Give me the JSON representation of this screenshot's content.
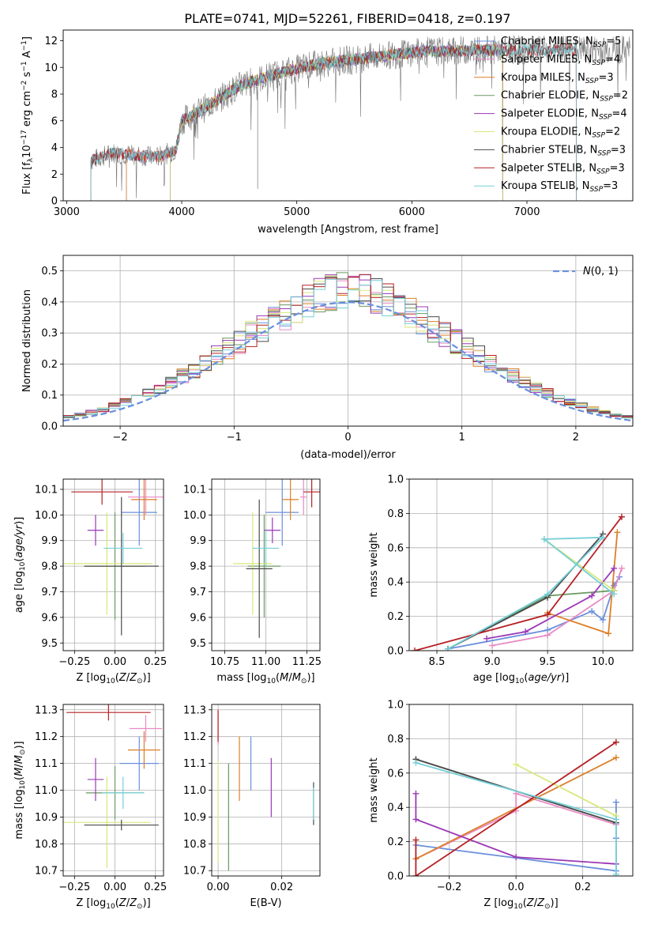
{
  "figure": {
    "title": "PLATE=0741, MJD=52261, FIBERID=0418, z=0.197"
  },
  "chart_data": [
    {
      "id": "spectrum",
      "type": "line",
      "title": "PLATE=0741, MJD=52261, FIBERID=0418, z=0.197",
      "xlabel": "wavelength [Angstrom, rest frame]",
      "ylabel": "Flux [f_λ10^-17 erg cm^-2 s^-1 A^-1]",
      "xlim": [
        2970,
        7920
      ],
      "ylim": [
        0,
        12.8
      ],
      "xticks": [
        3000,
        4000,
        5000,
        6000,
        7000
      ],
      "yticks": [
        0,
        2,
        4,
        6,
        8,
        10,
        12
      ],
      "grid": false,
      "legend_position": "right",
      "continuum_x": [
        3210,
        3400,
        3600,
        3800,
        3950,
        4000,
        4150,
        4300,
        4500,
        4700,
        4900,
        5100,
        5300,
        5500,
        5700,
        5900,
        6100,
        6300,
        6500,
        6700,
        6900,
        7100,
        7300,
        7500,
        7800
      ],
      "continuum_y": [
        3.0,
        3.6,
        3.4,
        3.3,
        3.8,
        6.0,
        6.7,
        7.5,
        8.6,
        9.2,
        9.7,
        10.1,
        10.4,
        10.6,
        10.8,
        11.0,
        11.2,
        11.2,
        11.3,
        11.3,
        11.3,
        11.3,
        11.3,
        11.3,
        11.3
      ],
      "data_start": 3210,
      "model_starts": [
        3520,
        3520,
        3520,
        3900,
        3900,
        3900,
        3210,
        3210,
        3210
      ],
      "model_ends": [
        6790,
        6790,
        6790,
        6790,
        6790,
        6790,
        7430,
        7430,
        7430
      ],
      "series": [
        {
          "name": "Chabrier MILES, N",
          "sub": "SSP",
          "suffix": "=5",
          "color": "#6a8fdc"
        },
        {
          "name": "Salpeter MILES, N",
          "sub": "SSP",
          "suffix": "=4",
          "color": "#e98ac4"
        },
        {
          "name": "Kroupa MILES, N",
          "sub": "SSP",
          "suffix": "=3",
          "color": "#dc7f27"
        },
        {
          "name": "Chabrier ELODIE, N",
          "sub": "SSP",
          "suffix": "=2",
          "color": "#6a9a62"
        },
        {
          "name": "Salpeter ELODIE, N",
          "sub": "SSP",
          "suffix": "=4",
          "color": "#9b39b6"
        },
        {
          "name": "Kroupa ELODIE, N",
          "sub": "SSP",
          "suffix": "=2",
          "color": "#d7e87a"
        },
        {
          "name": "Chabrier STELIB, N",
          "sub": "SSP",
          "suffix": "=3",
          "color": "#4b4b4b"
        },
        {
          "name": "Salpeter STELIB, N",
          "sub": "SSP",
          "suffix": "=3",
          "color": "#b52025"
        },
        {
          "name": "Kroupa STELIB, N",
          "sub": "SSP",
          "suffix": "=3",
          "color": "#76cfd8"
        }
      ]
    },
    {
      "id": "residuals",
      "type": "line",
      "xlabel": "(data-model)/error",
      "ylabel": "Normed distribution",
      "xlim": [
        -2.5,
        2.5
      ],
      "ylim": [
        0,
        0.55
      ],
      "xticks": [
        -2,
        -1,
        0,
        1,
        2
      ],
      "yticks": [
        0.0,
        0.1,
        0.2,
        0.3,
        0.4,
        0.5
      ],
      "grid": true,
      "legend_position": "top-right",
      "reference": {
        "name": "N(0, 1)",
        "color": "#6a8fdc"
      },
      "bin_width": 0.1
    },
    {
      "id": "age-vs-Z",
      "type": "scatter",
      "xlabel": "Z [log10(Z/Z⊙)]",
      "ylabel": "age [log10(age/yr)]",
      "xlim": [
        -0.32,
        0.3
      ],
      "ylim": [
        9.47,
        10.14
      ],
      "xticks": [
        -0.25,
        0.0,
        0.25
      ],
      "yticks": [
        9.5,
        9.6,
        9.7,
        9.8,
        9.9,
        10.0,
        10.1
      ],
      "grid": true,
      "points": [
        {
          "c": 0,
          "x": 0.15,
          "xe": 0.11,
          "y": 10.01,
          "ye": 0.13
        },
        {
          "c": 1,
          "x": 0.19,
          "xe": 0.11,
          "y": 10.07,
          "ye": 0.07
        },
        {
          "c": 2,
          "x": 0.18,
          "xe": 0.08,
          "y": 10.06,
          "ye": 0.08
        },
        {
          "c": 3,
          "x": 0.0,
          "xe": 0.19,
          "y": 9.8,
          "ye": 0.21
        },
        {
          "c": 4,
          "x": -0.12,
          "xe": 0.05,
          "y": 9.94,
          "ye": 0.06
        },
        {
          "c": 5,
          "x": -0.05,
          "xe": 0.28,
          "y": 9.81,
          "ye": 0.2
        },
        {
          "c": 6,
          "x": 0.04,
          "xe": 0.23,
          "y": 9.8,
          "ye": 0.27
        },
        {
          "c": 7,
          "x": -0.08,
          "xe": 0.19,
          "y": 10.09,
          "ye": 0.05
        },
        {
          "c": 8,
          "x": 0.05,
          "xe": 0.12,
          "y": 9.87,
          "ye": 0.06
        }
      ]
    },
    {
      "id": "age-vs-mass",
      "type": "scatter",
      "xlabel": "mass [log10(M/M⊙)]",
      "ylabel": "",
      "xlim": [
        10.67,
        11.33
      ],
      "ylim": [
        9.47,
        10.14
      ],
      "xticks": [
        10.75,
        11.0,
        11.25
      ],
      "yticks": [
        9.5,
        9.6,
        9.7,
        9.8,
        9.9,
        10.0,
        10.1
      ],
      "grid": true,
      "points": [
        {
          "c": 0,
          "x": 11.1,
          "xe": 0.1,
          "y": 10.01,
          "ye": 0.13
        },
        {
          "c": 1,
          "x": 11.23,
          "xe": 0.02,
          "y": 10.07,
          "ye": 0.07
        },
        {
          "c": 2,
          "x": 11.15,
          "xe": 0.05,
          "y": 10.06,
          "ye": 0.08
        },
        {
          "c": 3,
          "x": 10.99,
          "xe": 0.1,
          "y": 9.8,
          "ye": 0.2
        },
        {
          "c": 4,
          "x": 11.04,
          "xe": 0.05,
          "y": 9.94,
          "ye": 0.05
        },
        {
          "c": 5,
          "x": 10.92,
          "xe": 0.12,
          "y": 9.81,
          "ye": 0.2
        },
        {
          "c": 6,
          "x": 10.96,
          "xe": 0.08,
          "y": 9.79,
          "ye": 0.27
        },
        {
          "c": 7,
          "x": 11.28,
          "xe": 0.05,
          "y": 10.09,
          "ye": 0.06
        },
        {
          "c": 8,
          "x": 11.0,
          "xe": 0.08,
          "y": 9.87,
          "ye": 0.07
        }
      ]
    },
    {
      "id": "weight-vs-age",
      "type": "line",
      "xlabel": "age [log10(age/yr)]",
      "ylabel": "mass weight",
      "xlim": [
        8.25,
        10.27
      ],
      "ylim": [
        0,
        1.0
      ],
      "xticks": [
        8.5,
        9.0,
        9.5,
        10.0
      ],
      "yticks": [
        0.0,
        0.2,
        0.4,
        0.6,
        0.8,
        1.0
      ],
      "grid": true,
      "series": [
        {
          "c": 0,
          "x": [
            8.6,
            9.5,
            9.9,
            10.0,
            10.1,
            10.15
          ],
          "y": [
            0.01,
            0.12,
            0.23,
            0.18,
            0.38,
            0.43
          ]
        },
        {
          "c": 1,
          "x": [
            9.0,
            9.5,
            10.1,
            10.17
          ],
          "y": [
            0.03,
            0.09,
            0.35,
            0.48
          ]
        },
        {
          "c": 2,
          "x": [
            9.5,
            10.05,
            10.13
          ],
          "y": [
            0.22,
            0.1,
            0.69
          ]
        },
        {
          "c": 3,
          "x": [
            8.6,
            9.5,
            10.1
          ],
          "y": [
            0.01,
            0.32,
            0.35
          ]
        },
        {
          "c": 4,
          "x": [
            8.95,
            9.3,
            9.9,
            10.1
          ],
          "y": [
            0.07,
            0.11,
            0.32,
            0.48
          ]
        },
        {
          "c": 5,
          "x": [
            9.47,
            10.1
          ],
          "y": [
            0.65,
            0.35
          ]
        },
        {
          "c": 6,
          "x": [
            8.6,
            9.5,
            10.0
          ],
          "y": [
            0.01,
            0.31,
            0.68
          ]
        },
        {
          "c": 7,
          "x": [
            8.3,
            9.5,
            10.17
          ],
          "y": [
            0.0,
            0.21,
            0.78
          ]
        },
        {
          "c": 8,
          "x": [
            8.6,
            9.5,
            10.0,
            9.47,
            10.1
          ],
          "y": [
            0.01,
            0.33,
            0.66,
            0.65,
            0.33
          ]
        }
      ]
    },
    {
      "id": "mass-vs-Z",
      "type": "scatter",
      "xlabel": "Z [log10(Z/Z⊙)]",
      "ylabel": "mass [log10(M/M⊙)]",
      "xlim": [
        -0.32,
        0.3
      ],
      "ylim": [
        10.68,
        11.32
      ],
      "xticks": [
        -0.25,
        0.0,
        0.25
      ],
      "yticks": [
        10.7,
        10.8,
        10.9,
        11.0,
        11.1,
        11.2,
        11.3
      ],
      "grid": true,
      "points": [
        {
          "c": 0,
          "x": 0.15,
          "xe": 0.12,
          "y": 11.1,
          "ye": 0.1
        },
        {
          "c": 1,
          "x": 0.19,
          "xe": 0.1,
          "y": 11.23,
          "ye": 0.05
        },
        {
          "c": 2,
          "x": 0.18,
          "xe": 0.1,
          "y": 11.15,
          "ye": 0.07
        },
        {
          "c": 3,
          "x": 0.0,
          "xe": 0.18,
          "y": 10.99,
          "ye": 0.1
        },
        {
          "c": 4,
          "x": -0.12,
          "xe": 0.05,
          "y": 11.04,
          "ye": 0.08
        },
        {
          "c": 5,
          "x": -0.05,
          "xe": 0.27,
          "y": 10.88,
          "ye": 0.17
        },
        {
          "c": 6,
          "x": 0.04,
          "xe": 0.23,
          "y": 10.87,
          "ye": 0.02
        },
        {
          "c": 7,
          "x": -0.04,
          "xe": 0.26,
          "y": 11.29,
          "ye": 0.03
        },
        {
          "c": 8,
          "x": 0.05,
          "xe": 0.13,
          "y": 10.99,
          "ye": 0.06
        }
      ]
    },
    {
      "id": "mass-vs-EBV",
      "type": "scatter",
      "xlabel": "E(B-V)",
      "ylabel": "",
      "xlim": [
        -0.002,
        0.032
      ],
      "ylim": [
        10.68,
        11.32
      ],
      "xticks": [
        0.0,
        0.02
      ],
      "yticks": [
        10.7,
        10.8,
        10.9,
        11.0,
        11.1,
        11.2,
        11.3
      ],
      "grid": true,
      "points": [
        {
          "c": 0,
          "x": 0.0103,
          "xe": 0.0,
          "y": 11.1,
          "ye": 0.1
        },
        {
          "c": 1,
          "x": 0.0,
          "xe": 0.0,
          "y": 11.23,
          "ye": 0.06
        },
        {
          "c": 2,
          "x": 0.0067,
          "xe": 0.0,
          "y": 11.08,
          "ye": 0.12
        },
        {
          "c": 3,
          "x": 0.0033,
          "xe": 0.0,
          "y": 10.9,
          "ye": 0.2
        },
        {
          "c": 4,
          "x": 0.0167,
          "xe": 0.0,
          "y": 11.01,
          "ye": 0.11
        },
        {
          "c": 5,
          "x": 0.0,
          "xe": 0.0,
          "y": 10.92,
          "ye": 0.19
        },
        {
          "c": 6,
          "x": 0.03,
          "xe": 0.0,
          "y": 10.95,
          "ye": 0.08
        },
        {
          "c": 7,
          "x": 0.0,
          "xe": 0.0,
          "y": 11.24,
          "ye": 0.06
        },
        {
          "c": 8,
          "x": 0.03,
          "xe": 0.0,
          "y": 10.95,
          "ye": 0.06
        }
      ]
    },
    {
      "id": "weight-vs-Z",
      "type": "line",
      "xlabel": "Z [log10(Z/Z⊙)]",
      "ylabel": "mass weight",
      "xlim": [
        -0.32,
        0.35
      ],
      "ylim": [
        0,
        1.0
      ],
      "xticks": [
        -0.2,
        0.0,
        0.2
      ],
      "yticks": [
        0.0,
        0.2,
        0.4,
        0.6,
        0.8,
        1.0
      ],
      "grid": true,
      "series": [
        {
          "c": 0,
          "x": [
            -0.3,
            0.3,
            0.3,
            0.3
          ],
          "y": [
            0.18,
            0.03,
            0.43,
            0.22
          ]
        },
        {
          "c": 1,
          "x": [
            -0.3,
            0.0,
            0.0,
            0.3
          ],
          "y": [
            0.1,
            0.38,
            0.48,
            0.3
          ]
        },
        {
          "c": 2,
          "x": [
            -0.3,
            0.3
          ],
          "y": [
            0.1,
            0.69
          ]
        },
        {
          "c": 3,
          "x": [
            -0.3,
            0.3
          ],
          "y": [
            0.68,
            0.31
          ]
        },
        {
          "c": 4,
          "x": [
            -0.3,
            -0.3,
            0.0,
            0.3
          ],
          "y": [
            0.48,
            0.33,
            0.11,
            0.07
          ]
        },
        {
          "c": 5,
          "x": [
            0.0,
            0.3
          ],
          "y": [
            0.65,
            0.35
          ]
        },
        {
          "c": 6,
          "x": [
            -0.3,
            0.3
          ],
          "y": [
            0.68,
            0.31
          ]
        },
        {
          "c": 7,
          "x": [
            -0.3,
            -0.3,
            0.3
          ],
          "y": [
            0.21,
            0.0,
            0.78
          ]
        },
        {
          "c": 8,
          "x": [
            -0.3,
            0.3,
            0.3
          ],
          "y": [
            0.66,
            0.33,
            0.01
          ]
        }
      ]
    }
  ]
}
